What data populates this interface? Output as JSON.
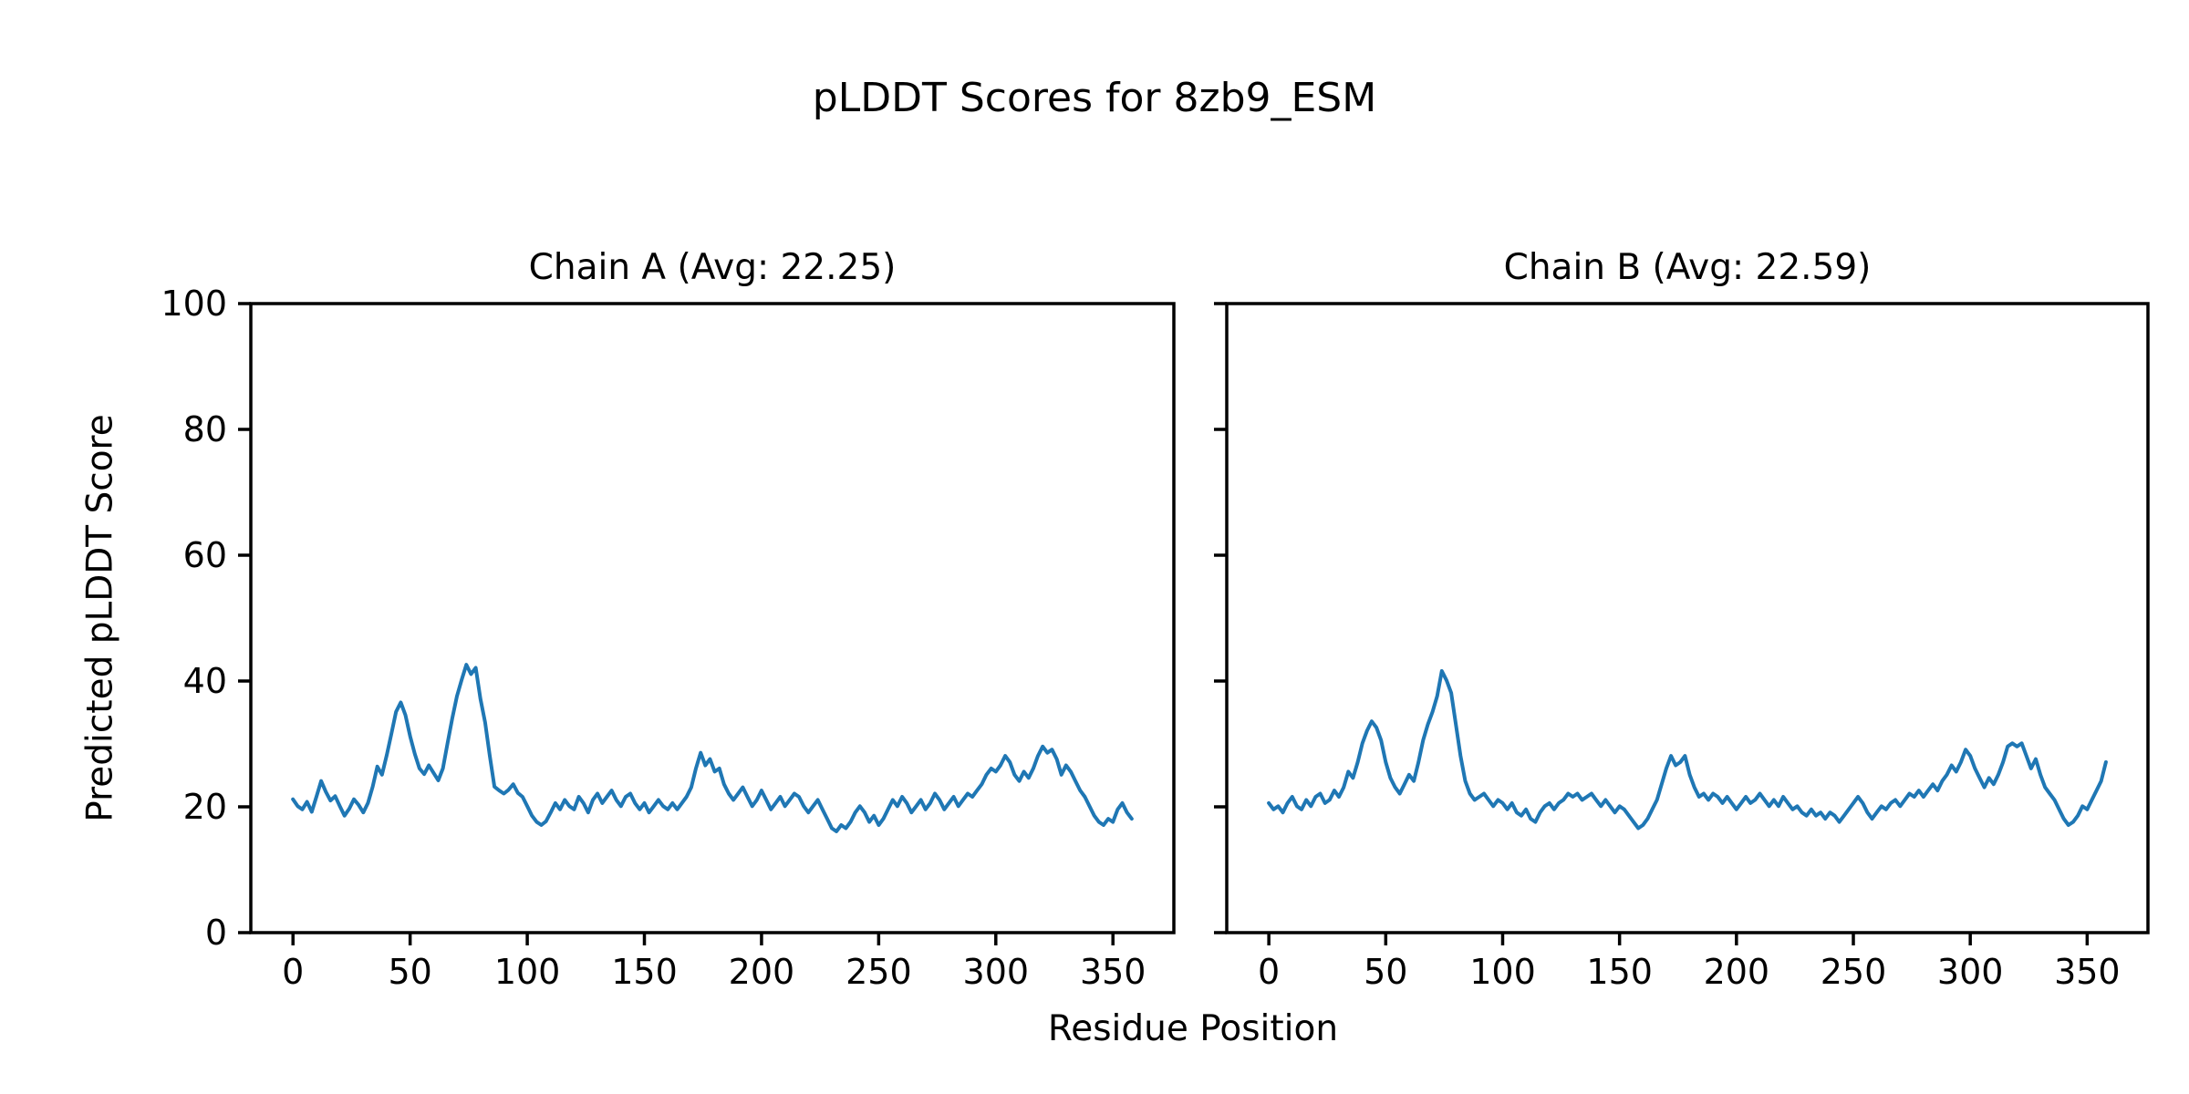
{
  "figure": {
    "title": "pLDDT Scores for 8zb9_ESM",
    "xlabel": "Residue Position",
    "ylabel": "Predicted pLDDT Score"
  },
  "chart_data": [
    {
      "type": "line",
      "title": "Chain A (Avg: 22.25)",
      "chain": "A",
      "avg": 22.25,
      "line_color": "#1f77b4",
      "xlabel": "Residue Position",
      "ylabel": "Predicted pLDDT Score",
      "xlim": [
        -18,
        376
      ],
      "ylim": [
        0,
        100
      ],
      "xticks": [
        0,
        50,
        100,
        150,
        200,
        250,
        300,
        350
      ],
      "yticks": [
        0,
        20,
        40,
        60,
        80,
        100
      ],
      "grid": false,
      "legend": "none",
      "x_start": 0,
      "x_step": 2,
      "values": [
        21.2,
        20.1,
        19.6,
        20.8,
        19.2,
        21.6,
        24.1,
        22.4,
        21.0,
        21.7,
        20.1,
        18.6,
        19.7,
        21.2,
        20.3,
        19.1,
        20.6,
        23.2,
        26.4,
        25.1,
        28.2,
        31.6,
        35.1,
        36.6,
        34.6,
        31.2,
        28.4,
        26.1,
        25.2,
        26.6,
        25.4,
        24.2,
        26.1,
        30.2,
        34.1,
        37.6,
        40.2,
        42.6,
        41.1,
        42.1,
        37.2,
        33.4,
        28.1,
        23.2,
        22.6,
        22.1,
        22.7,
        23.6,
        22.2,
        21.6,
        20.1,
        18.6,
        17.6,
        17.1,
        17.7,
        19.1,
        20.6,
        19.6,
        21.1,
        20.1,
        19.6,
        21.6,
        20.6,
        19.1,
        21.1,
        22.1,
        20.6,
        21.6,
        22.6,
        21.1,
        20.1,
        21.6,
        22.1,
        20.6,
        19.6,
        20.6,
        19.1,
        20.1,
        21.1,
        20.1,
        19.6,
        20.6,
        19.6,
        20.6,
        21.6,
        23.1,
        26.1,
        28.6,
        26.6,
        27.6,
        25.6,
        26.1,
        23.6,
        22.1,
        21.1,
        22.1,
        23.1,
        21.6,
        20.1,
        21.1,
        22.6,
        21.1,
        19.6,
        20.6,
        21.6,
        20.1,
        21.1,
        22.1,
        21.6,
        20.1,
        19.1,
        20.1,
        21.1,
        19.6,
        18.1,
        16.6,
        16.1,
        17.1,
        16.6,
        17.6,
        19.1,
        20.1,
        19.1,
        17.6,
        18.6,
        17.1,
        18.1,
        19.6,
        21.1,
        20.1,
        21.6,
        20.6,
        19.1,
        20.1,
        21.1,
        19.6,
        20.6,
        22.1,
        21.1,
        19.6,
        20.6,
        21.6,
        20.1,
        21.1,
        22.1,
        21.6,
        22.6,
        23.6,
        25.1,
        26.1,
        25.6,
        26.6,
        28.1,
        27.1,
        25.1,
        24.1,
        25.6,
        24.6,
        26.1,
        28.1,
        29.6,
        28.6,
        29.1,
        27.6,
        25.1,
        26.6,
        25.6,
        24.1,
        22.6,
        21.6,
        20.1,
        18.6,
        17.6,
        17.1,
        18.1,
        17.6,
        19.6,
        20.6,
        19.1,
        18.1
      ]
    },
    {
      "type": "line",
      "title": "Chain B (Avg: 22.59)",
      "chain": "B",
      "avg": 22.59,
      "line_color": "#1f77b4",
      "xlabel": "Residue Position",
      "ylabel": "Predicted pLDDT Score",
      "xlim": [
        -18,
        376
      ],
      "ylim": [
        0,
        100
      ],
      "xticks": [
        0,
        50,
        100,
        150,
        200,
        250,
        300,
        350
      ],
      "yticks": [
        0,
        20,
        40,
        60,
        80,
        100
      ],
      "grid": false,
      "legend": "none",
      "x_start": 0,
      "x_step": 2,
      "values": [
        20.6,
        19.6,
        20.1,
        19.1,
        20.6,
        21.6,
        20.1,
        19.6,
        21.1,
        20.1,
        21.6,
        22.1,
        20.6,
        21.1,
        22.6,
        21.6,
        23.1,
        25.6,
        24.6,
        27.1,
        30.1,
        32.1,
        33.6,
        32.6,
        30.6,
        27.1,
        24.6,
        23.1,
        22.1,
        23.6,
        25.1,
        24.1,
        27.1,
        30.6,
        33.1,
        35.1,
        37.6,
        41.6,
        40.1,
        38.1,
        33.1,
        28.1,
        24.1,
        22.1,
        21.1,
        21.6,
        22.1,
        21.1,
        20.1,
        21.1,
        20.6,
        19.6,
        20.6,
        19.1,
        18.6,
        19.6,
        18.1,
        17.6,
        19.1,
        20.1,
        20.6,
        19.6,
        20.6,
        21.1,
        22.1,
        21.6,
        22.1,
        21.1,
        21.6,
        22.1,
        21.1,
        20.1,
        21.1,
        20.1,
        19.1,
        20.1,
        19.6,
        18.6,
        17.6,
        16.6,
        17.1,
        18.1,
        19.6,
        21.1,
        23.6,
        26.1,
        28.1,
        26.6,
        27.1,
        28.1,
        25.1,
        23.1,
        21.6,
        22.1,
        21.1,
        22.1,
        21.6,
        20.6,
        21.6,
        20.6,
        19.6,
        20.6,
        21.6,
        20.6,
        21.1,
        22.1,
        21.1,
        20.1,
        21.1,
        20.1,
        21.6,
        20.6,
        19.6,
        20.1,
        19.1,
        18.6,
        19.6,
        18.6,
        19.1,
        18.1,
        19.1,
        18.6,
        17.6,
        18.6,
        19.6,
        20.6,
        21.6,
        20.6,
        19.1,
        18.1,
        19.1,
        20.1,
        19.6,
        20.6,
        21.1,
        20.1,
        21.1,
        22.1,
        21.6,
        22.6,
        21.6,
        22.6,
        23.6,
        22.6,
        24.1,
        25.1,
        26.6,
        25.6,
        27.1,
        29.1,
        28.1,
        26.1,
        24.6,
        23.1,
        24.6,
        23.6,
        25.1,
        27.1,
        29.6,
        30.1,
        29.6,
        30.1,
        28.1,
        26.1,
        27.6,
        25.1,
        23.1,
        22.1,
        21.1,
        19.6,
        18.1,
        17.1,
        17.6,
        18.6,
        20.1,
        19.6,
        21.1,
        22.6,
        24.1,
        27.1
      ]
    }
  ]
}
